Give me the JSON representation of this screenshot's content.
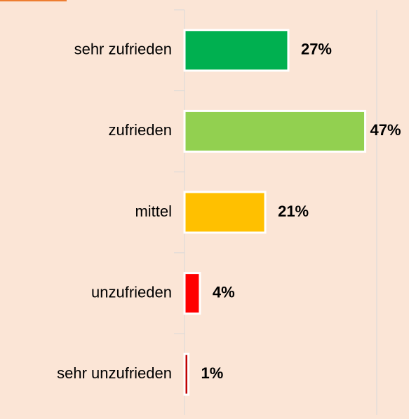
{
  "chart_data": {
    "type": "bar",
    "orientation": "horizontal",
    "categories": [
      "sehr zufrieden",
      "zufrieden",
      "mittel",
      "unzufrieden",
      "sehr unzufrieden"
    ],
    "values": [
      27,
      47,
      21,
      4,
      1
    ],
    "value_labels": [
      "27%",
      "47%",
      "21%",
      "4%",
      "1%"
    ],
    "colors": [
      "#00b050",
      "#92d050",
      "#ffc000",
      "#ff0000",
      "#c00000"
    ],
    "xlim": [
      0,
      50
    ],
    "grid": true
  }
}
